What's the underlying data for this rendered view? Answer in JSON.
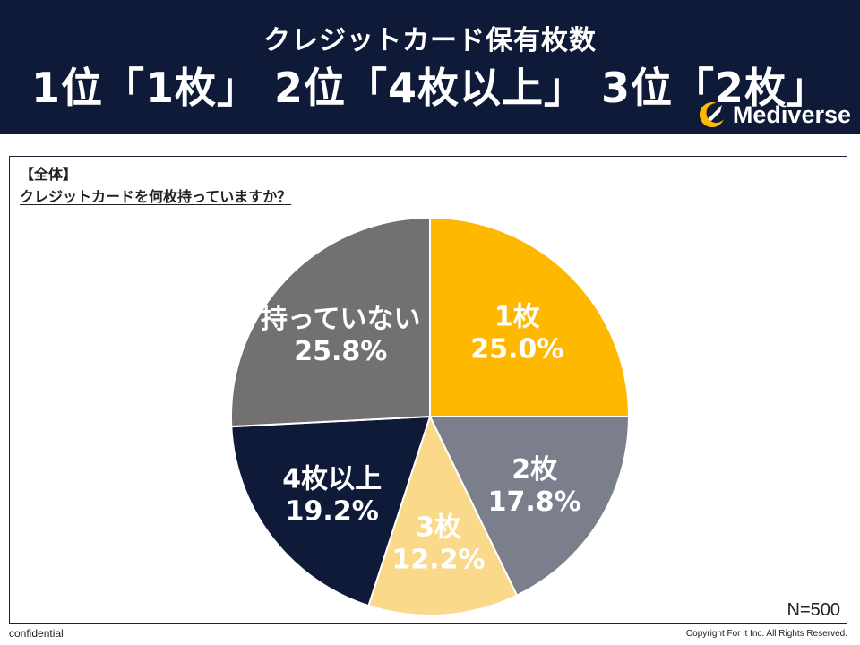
{
  "header": {
    "subtitle": "クレジットカード保有枚数",
    "title": "1位「1枚」 2位「4枚以上」 3位「2枚」",
    "logo_text": "Mediverse",
    "background": "#0e1a38",
    "logo_icon": "rocket-moon-icon"
  },
  "panel": {
    "tag": "【全体】",
    "question": "クレジットカードを何枚持っていますか？",
    "n_label": "N=500"
  },
  "footer": {
    "left": "confidential",
    "right": "Copyright For it Inc. All Rights Reserved."
  },
  "chart_data": {
    "type": "pie",
    "start": "12 o'clock, clockwise",
    "slices": [
      {
        "label": "1枚",
        "value": 25.0,
        "value_label": "25.0%",
        "color": "#ffb800",
        "text_color": "#ffffff"
      },
      {
        "label": "2枚",
        "value": 17.8,
        "value_label": "17.8%",
        "color": "#7b7f8c",
        "text_color": "#ffffff"
      },
      {
        "label": "3枚",
        "value": 12.2,
        "value_label": "12.2%",
        "color": "#fad98a",
        "text_color": "#ffffff"
      },
      {
        "label": "4枚以上",
        "value": 19.2,
        "value_label": "19.2%",
        "color": "#0e1a38",
        "text_color": "#ffffff"
      },
      {
        "label": "持っていない",
        "value": 25.8,
        "value_label": "25.8%",
        "color": "#737070",
        "text_color": "#ffffff"
      }
    ]
  }
}
